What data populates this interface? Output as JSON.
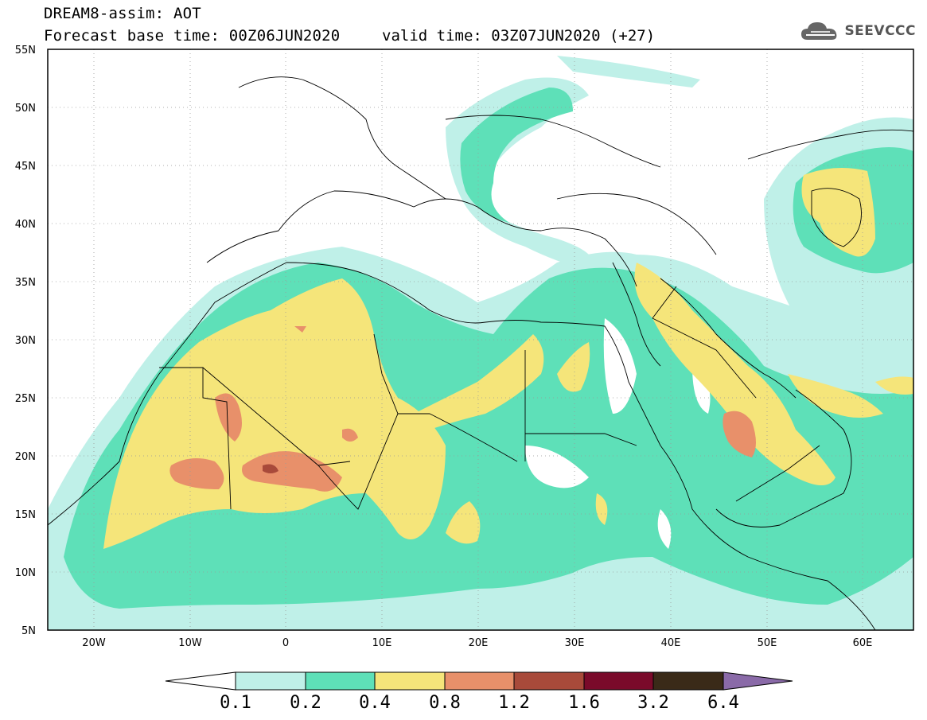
{
  "header": {
    "line1": "DREAM8-assim: AOT",
    "line2": "Forecast base time: 00Z06JUN2020",
    "valid": "valid time: 03Z07JUN2020 (+27)"
  },
  "logo": {
    "text": "SEEVCCC",
    "icon": "cloud-icon"
  },
  "map": {
    "lat_range": [
      5,
      55
    ],
    "lon_range": [
      -25,
      65
    ],
    "lat_labels": [
      "55N",
      "50N",
      "45N",
      "40N",
      "35N",
      "30N",
      "25N",
      "20N",
      "15N",
      "10N",
      "5N"
    ],
    "lon_labels": [
      "20W",
      "10W",
      "0",
      "10E",
      "20E",
      "30E",
      "40E",
      "50E",
      "60E"
    ],
    "variable": "AOT"
  },
  "colorbar": {
    "labels": [
      "0.1",
      "0.2",
      "0.4",
      "0.8",
      "1.2",
      "1.6",
      "3.2",
      "6.4"
    ],
    "colors": [
      "#ffffff",
      "#bff0e8",
      "#5ee0b8",
      "#f5e57a",
      "#e8906a",
      "#a84a3a",
      "#7a0a2a",
      "#3a2a18",
      "#8a6aa8"
    ]
  },
  "chart_data": {
    "type": "heatmap",
    "title": "DREAM8-assim: AOT",
    "levels": [
      0.1,
      0.2,
      0.4,
      0.8,
      1.2,
      1.6,
      3.2,
      6.4
    ],
    "xlim": [
      -25,
      65
    ],
    "ylim": [
      5,
      55
    ]
  }
}
